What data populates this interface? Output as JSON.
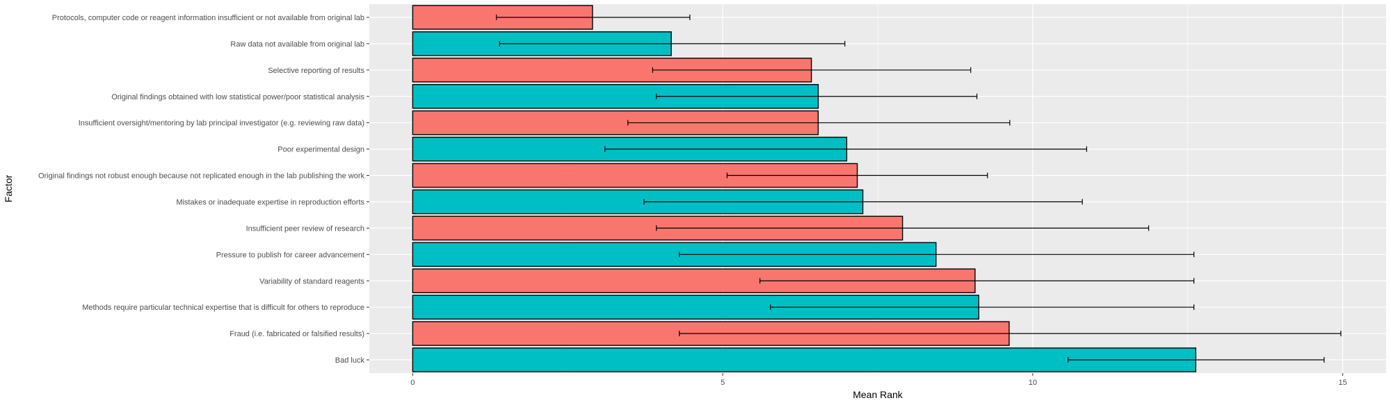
{
  "chart_data": {
    "type": "bar",
    "orientation": "horizontal",
    "xlabel": "Mean Rank",
    "ylabel": "Factor",
    "xlim": [
      -0.7,
      15.7
    ],
    "xticks": [
      0,
      5,
      10,
      15
    ],
    "grid": true,
    "legend": "none",
    "colors": {
      "red": "#F8766D",
      "teal": "#00BFC4",
      "panel": "#EBEBEB",
      "grid": "#FFFFFF"
    },
    "categories": [
      "Protocols, computer code or reagent information insufficient or not available from original lab",
      "Raw data not available from original lab",
      "Selective reporting of results",
      "Original findings obtained with low statistical power/poor statistical analysis",
      "Insufficient oversight/mentoring by lab principal investigator (e.g. reviewing raw data)",
      "Poor experimental design",
      "Original findings not robust enough because not replicated enough in the lab publishing the work",
      "Mistakes or inadequate expertise in reproduction efforts",
      "Insufficient peer review of research",
      "Pressure to publish for career advancement",
      "Variability of standard reagents",
      "Methods require particular technical expertise that is difficult for others to reproduce",
      "Fraud (i.e. fabricated or falsified results)",
      "Bad luck"
    ],
    "values": [
      2.9,
      4.17,
      6.43,
      6.54,
      6.54,
      7.0,
      7.17,
      7.26,
      7.9,
      8.44,
      9.07,
      9.13,
      9.62,
      12.63
    ],
    "error_low": [
      1.35,
      1.4,
      3.87,
      3.93,
      3.47,
      3.1,
      5.07,
      3.73,
      3.93,
      4.3,
      5.6,
      5.77,
      4.3,
      10.57
    ],
    "error_high": [
      4.47,
      6.97,
      9.0,
      9.1,
      9.63,
      10.87,
      9.27,
      10.8,
      11.87,
      12.6,
      12.6,
      12.6,
      14.97,
      14.7
    ],
    "bar_colors": [
      "red",
      "teal",
      "red",
      "teal",
      "red",
      "teal",
      "red",
      "teal",
      "red",
      "teal",
      "red",
      "teal",
      "red",
      "teal"
    ]
  }
}
